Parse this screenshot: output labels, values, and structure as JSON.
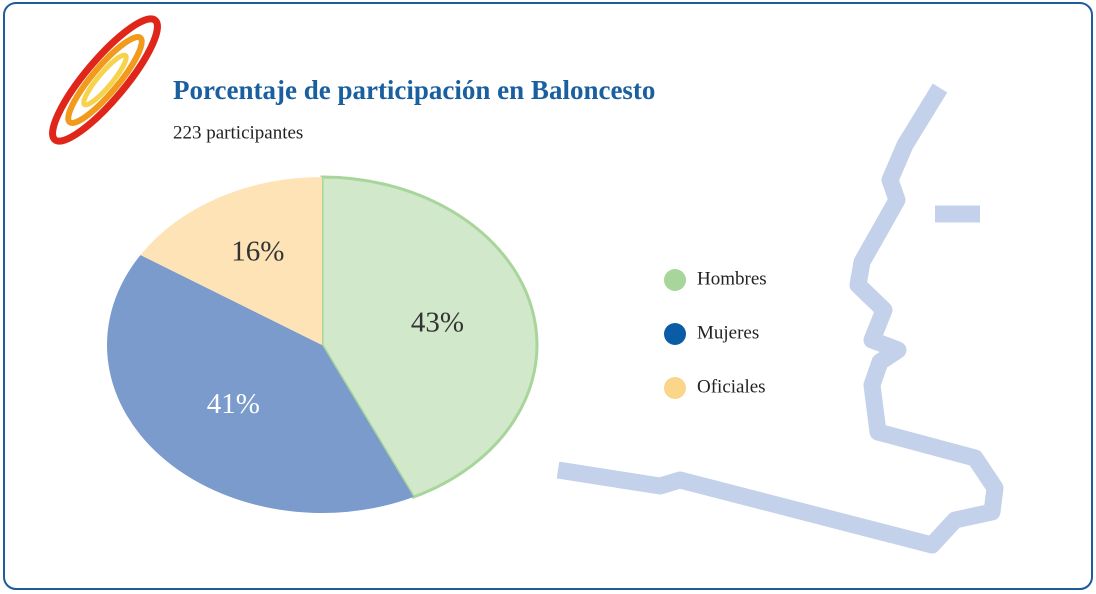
{
  "chart_data": {
    "type": "pie",
    "title": "Porcentaje de participación en Baloncesto",
    "subtitle": "223  participantes",
    "categories": [
      "Hombres",
      "Mujeres",
      "Oficiales"
    ],
    "values": [
      43,
      41,
      16
    ],
    "value_labels": [
      "43%",
      "41%",
      "16%"
    ],
    "colors": [
      "#a8d59a",
      "#0b5ca6",
      "#fbd58a"
    ],
    "slice_colors": [
      "#d1e8cb",
      "#7b9bcc",
      "#fde3b6"
    ],
    "label_colors": [
      "#333333",
      "#ffffff",
      "#333333"
    ],
    "legend": "right"
  }
}
